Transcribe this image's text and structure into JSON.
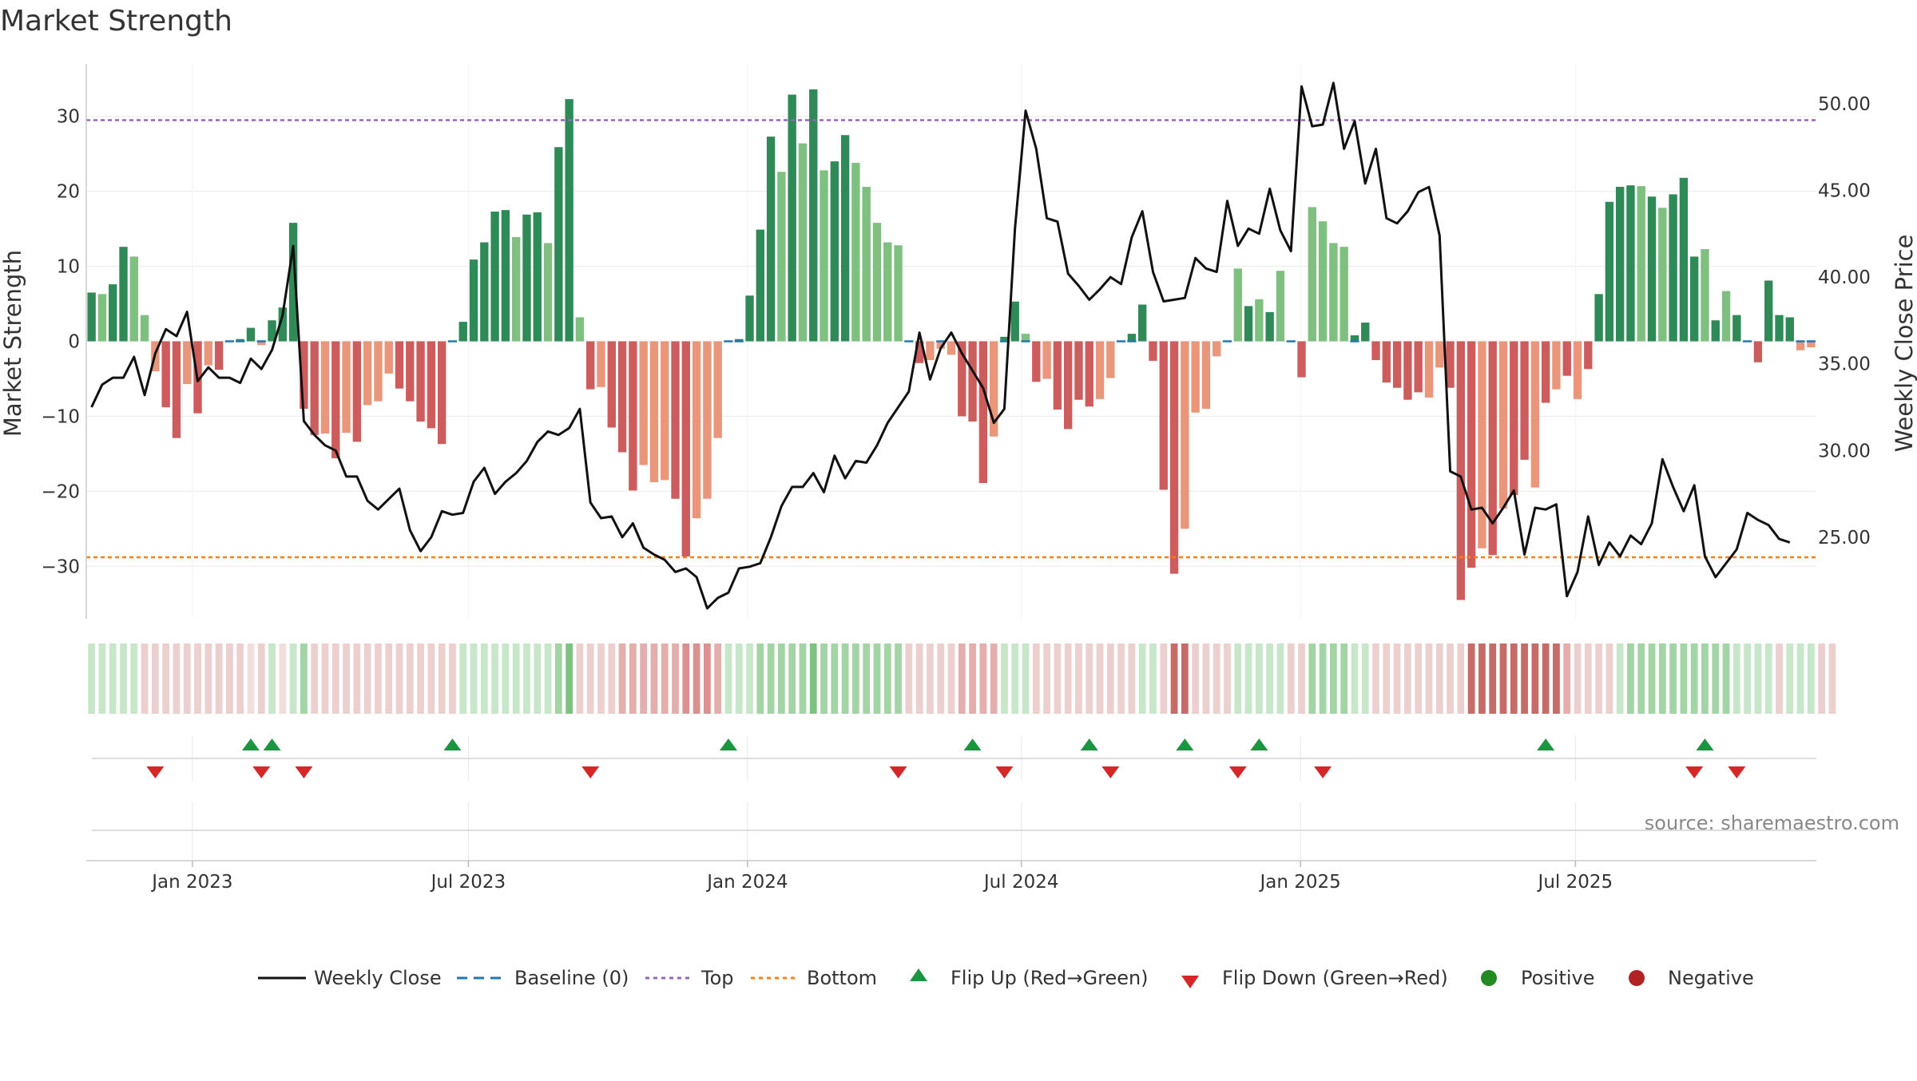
{
  "title": "Market Strength",
  "source": "source: sharemaestro.com",
  "colors": {
    "strong_green": "#2e8b57",
    "light_green": "#7fbf7f",
    "strong_red": "#cd5c5c",
    "light_red": "#e9967a",
    "close_line": "#111111",
    "baseline": "#1f77b4",
    "top_line": "#9467bd",
    "bottom_line": "#ff7f0e",
    "flip_up": "#1a9641",
    "flip_down": "#d62728",
    "positive": "#228b22",
    "negative": "#b22222"
  },
  "chart_data": {
    "type": "bar",
    "title": "Market Strength",
    "ylabel_left": "Market Strength",
    "ylabel_right": "Weekly Close Price",
    "ylim_left": [
      -37,
      37
    ],
    "yticks_left": [
      30,
      20,
      10,
      0,
      -10,
      -20,
      -30
    ],
    "yticks_left_labels": [
      "30",
      "20",
      "10",
      "0",
      "−10",
      "−20",
      "−30"
    ],
    "ylim_right": [
      20.3,
      52.3
    ],
    "yticks_right": [
      50,
      45,
      40,
      35,
      30,
      25
    ],
    "yticks_right_labels": [
      "50.00",
      "45.00",
      "40.00",
      "35.00",
      "30.00",
      "25.00"
    ],
    "x_start": "2022-10-24",
    "x_end": "2025-10-27",
    "x_tick_labels": [
      "Jan 2023",
      "Jul 2023",
      "Jan 2024",
      "Jul 2024",
      "Jan 2025",
      "Jul 2025"
    ],
    "x_tick_weeks": [
      10,
      36,
      62.3,
      88.1,
      114.4,
      140.3
    ],
    "top_line": 29.5,
    "bottom_line": -28.8,
    "baseline": 0,
    "strength": [
      6.5,
      6.3,
      7.6,
      12.6,
      11.3,
      3.5,
      -4,
      -8.8,
      -12.9,
      -5.7,
      -9.6,
      -3.2,
      -3.8,
      0,
      0.3,
      1.8,
      -0.5,
      2.8,
      4.5,
      15.8,
      -9,
      -12.5,
      -12.3,
      -15.6,
      -12.2,
      -13.4,
      -8.5,
      -8,
      -4.3,
      -6.3,
      -8,
      -10.7,
      -11.6,
      -13.7,
      0,
      2.6,
      10.9,
      13.2,
      17.3,
      17.5,
      13.9,
      16.9,
      17.2,
      13.1,
      25.9,
      32.3,
      3.2,
      -6.4,
      -6.1,
      -11.5,
      -14.8,
      -19.9,
      -16.5,
      -18.8,
      -18.5,
      -21,
      -28.7,
      -23.6,
      -21,
      -12.9,
      0,
      0.3,
      6.1,
      14.9,
      27.3,
      22.6,
      32.9,
      26.4,
      33.6,
      22.8,
      24,
      27.5,
      23.8,
      20.6,
      15.8,
      13.2,
      12.8,
      0,
      -2.9,
      -2.5,
      -1,
      -1.8,
      -10,
      -10.7,
      -18.9,
      -12.7,
      0.6,
      5.3,
      1,
      -5.4,
      -5,
      -9.1,
      -11.7,
      -7.8,
      -8.7,
      -7.7,
      -4.9,
      0,
      1,
      4.9,
      -2.6,
      -19.8,
      -31,
      -25,
      -9.5,
      -9,
      -2,
      0,
      9.7,
      4.7,
      5.6,
      3.9,
      9.4,
      0,
      -4.8,
      17.9,
      16,
      13.1,
      12.6,
      0.8,
      2.5,
      -2.5,
      -5.5,
      -6.2,
      -7.8,
      -6.8,
      -7.5,
      -3.5,
      -6.2,
      -34.5,
      -30.2,
      -27.6,
      -28.5,
      -22.3,
      -20.5,
      -15.8,
      -19.5,
      -8.2,
      -6.4,
      -4.6,
      -7.7,
      -3.7,
      6.3,
      18.6,
      20.6,
      20.8,
      20.7,
      19.3,
      17.8,
      19.6,
      21.8,
      11.3,
      12.3,
      2.8,
      6.7,
      3.5,
      0,
      -2.8,
      8.1,
      3.5,
      3.2,
      -1.2,
      -0.8
    ],
    "bar_shade": [
      1,
      0,
      1,
      1,
      0,
      0,
      0,
      1,
      1,
      0,
      1,
      0,
      1,
      1,
      1,
      1,
      0,
      1,
      1,
      1,
      1,
      1,
      0,
      1,
      0,
      1,
      0,
      0,
      0,
      1,
      1,
      1,
      1,
      1,
      1,
      1,
      1,
      1,
      1,
      1,
      0,
      1,
      1,
      0,
      1,
      1,
      0,
      1,
      0,
      1,
      1,
      1,
      0,
      0,
      0,
      1,
      1,
      0,
      0,
      0,
      1,
      1,
      1,
      1,
      1,
      0,
      1,
      0,
      1,
      0,
      1,
      1,
      0,
      0,
      0,
      0,
      0,
      1,
      1,
      0,
      0,
      0,
      1,
      1,
      1,
      0,
      1,
      1,
      0,
      1,
      0,
      1,
      1,
      1,
      1,
      0,
      0,
      1,
      1,
      1,
      1,
      1,
      1,
      0,
      0,
      0,
      0,
      1,
      0,
      1,
      0,
      1,
      0,
      1,
      1,
      0,
      0,
      0,
      0,
      1,
      1,
      1,
      1,
      1,
      1,
      1,
      0,
      0,
      1,
      1,
      1,
      0,
      1,
      0,
      1,
      1,
      0,
      1,
      0,
      1,
      0,
      1,
      1,
      1,
      1,
      1,
      0,
      1,
      0,
      1,
      1,
      1,
      0,
      1,
      0,
      1,
      1,
      1,
      1,
      1,
      1,
      0,
      0,
      0,
      1,
      0
    ],
    "weekly_close": [
      32.5,
      33.8,
      34.2,
      34.2,
      35.4,
      33.2,
      35.6,
      37,
      36.6,
      38,
      34,
      34.8,
      34.2,
      34.2,
      33.9,
      35.3,
      34.7,
      35.8,
      37.8,
      41.8,
      31.7,
      30.9,
      30.3,
      30,
      28.5,
      28.5,
      27.1,
      26.6,
      27.2,
      27.8,
      25.4,
      24.2,
      25,
      26.5,
      26.3,
      26.4,
      28.2,
      29,
      27.5,
      28.2,
      28.7,
      29.4,
      30.5,
      31.1,
      30.9,
      31.3,
      32.4,
      27,
      26.1,
      26.2,
      25,
      25.8,
      24.4,
      24,
      23.7,
      23,
      23.2,
      22.7,
      20.9,
      21.5,
      21.8,
      23.2,
      23.3,
      23.5,
      25,
      26.8,
      27.9,
      27.9,
      28.7,
      27.6,
      29.7,
      28.4,
      29.4,
      29.3,
      30.3,
      31.6,
      32.5,
      33.4,
      36.8,
      34.1,
      35.9,
      36.8,
      35.6,
      34.6,
      33.6,
      31.6,
      32.4,
      42.8,
      49.6,
      47.4,
      43.4,
      43.2,
      40.2,
      39.5,
      38.7,
      39.3,
      40,
      39.6,
      42.3,
      43.8,
      40.3,
      38.6,
      38.7,
      38.8,
      41.1,
      40.5,
      40.3,
      44.4,
      41.8,
      42.8,
      42.5,
      45.1,
      42.7,
      41.5,
      51,
      48.7,
      48.8,
      51.2,
      47.4,
      49,
      45.4,
      47.4,
      43.4,
      43.1,
      43.8,
      44.9,
      45.2,
      42.4,
      28.8,
      28.5,
      26.6,
      26.7,
      25.8,
      26.7,
      27.7,
      24,
      26.7,
      26.6,
      26.9,
      21.6,
      23,
      26.2,
      23.4,
      24.7,
      23.9,
      25.1,
      24.6,
      25.8,
      29.5,
      27.9,
      26.5,
      28,
      23.9,
      22.7,
      23.5,
      24.3,
      26.4,
      26,
      25.7,
      24.9,
      24.7
    ],
    "band_levels": [
      1,
      1,
      1,
      1,
      1,
      -1,
      -1,
      -1,
      -1,
      -1,
      -1,
      -1,
      -1,
      -1,
      -1,
      0,
      -1,
      1,
      0,
      1,
      2,
      -1,
      -1,
      -1,
      -1,
      -1,
      -1,
      -1,
      -1,
      -1,
      -1,
      -1,
      -1,
      -1,
      -1,
      1,
      1,
      1,
      1,
      1,
      1,
      1,
      1,
      1,
      2,
      3,
      -1,
      -1,
      -1,
      -1,
      -2,
      -2,
      -2,
      -2,
      -2,
      -2,
      -3,
      -3,
      -3,
      -2,
      1,
      1,
      1,
      2,
      2,
      2,
      2,
      2,
      3,
      2,
      2,
      2,
      2,
      2,
      2,
      2,
      2,
      -1,
      -1,
      -1,
      -1,
      -1,
      -2,
      -2,
      -2,
      -2,
      1,
      1,
      1,
      -1,
      -1,
      -1,
      -1,
      -1,
      -1,
      -1,
      -1,
      -1,
      -1,
      1,
      1,
      -1,
      -4,
      -4,
      -1,
      -1,
      -1,
      -1,
      1,
      1,
      1,
      1,
      1,
      -1,
      -1,
      2,
      2,
      2,
      2,
      1,
      1,
      -1,
      -1,
      -1,
      -1,
      -1,
      -1,
      -1,
      -1,
      -1,
      -4,
      -4,
      -4,
      -4,
      -4,
      -4,
      -4,
      -4,
      -4,
      -2,
      -1,
      -1,
      -1,
      -1,
      1,
      2,
      2,
      2,
      2,
      2,
      2,
      2,
      2,
      2,
      2,
      1,
      1,
      1,
      1,
      -1,
      1,
      1,
      1,
      -1,
      -1
    ],
    "flip_up_weeks": [
      15,
      17,
      34,
      60,
      83,
      94,
      103,
      110,
      137,
      152
    ],
    "flip_down_weeks": [
      6,
      16,
      20,
      47,
      76,
      86,
      96,
      108,
      116,
      151,
      155
    ]
  },
  "legend": {
    "weekly_close": "Weekly Close",
    "baseline": "Baseline (0)",
    "top": "Top",
    "bottom": "Bottom",
    "flip_up": "Flip Up (Red→Green)",
    "flip_down": "Flip Down (Green→Red)",
    "positive": "Positive",
    "negative": "Negative"
  }
}
